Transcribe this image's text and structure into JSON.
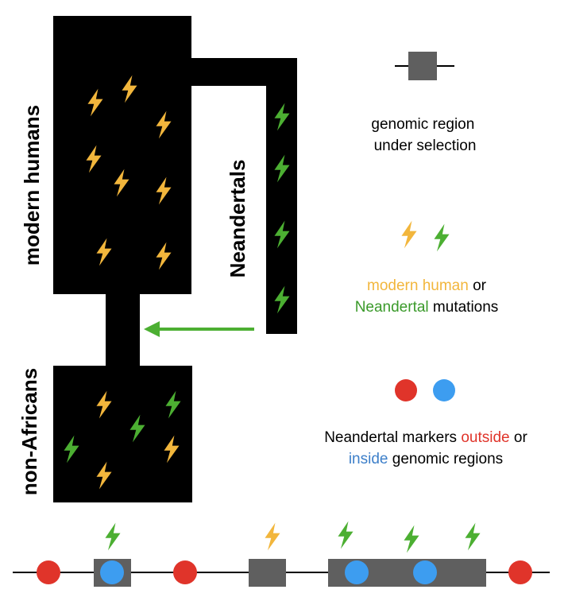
{
  "labels": {
    "modern_humans": "modern humans",
    "neandertals": "Neandertals",
    "non_africans": "non-Africans"
  },
  "legend": {
    "region_line1": "genomic region",
    "region_line2": "under selection",
    "mut_line1_a": "modern human",
    "mut_line1_b": " or",
    "mut_line2_a": "Neandertal",
    "mut_line2_b": " mutations",
    "mark_line1_a": "Neandertal markers ",
    "mark_line1_b": "outside",
    "mark_line1_c": " or",
    "mark_line2_a": "inside",
    "mark_line2_b": " genomic regions"
  },
  "colors": {
    "population": "#000000",
    "region": "#5f5f5f",
    "modern_mutation": "#f2b63c",
    "neandertal_mutation": "#4caf32",
    "outside_marker": "#e0342a",
    "inside_marker": "#3d9df0",
    "gene_flow_arrow": "#4caf32"
  },
  "icons": {
    "mutation": "lightning-bolt-icon",
    "marker": "circle-marker-icon",
    "gene_flow": "arrow-left-icon"
  }
}
